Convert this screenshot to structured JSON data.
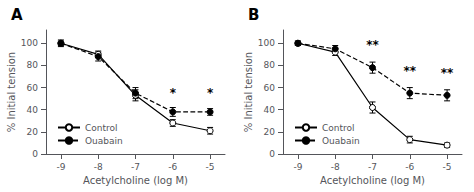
{
  "chart_data": [
    {
      "type": "line",
      "title": "A",
      "x": [
        -9,
        -8,
        -7,
        -6,
        -5
      ],
      "series": [
        {
          "name": "Control",
          "color": "#000000",
          "marker": "open_circle",
          "line_style": "solid",
          "values": [
            100,
            90,
            53,
            28,
            21
          ],
          "yerr": [
            2,
            3,
            5,
            3,
            3
          ]
        },
        {
          "name": "Ouabain",
          "color": "#000000",
          "marker": "filled_circle",
          "line_style": "dashed",
          "values": [
            100,
            88,
            55,
            38,
            38
          ],
          "yerr": [
            3,
            4,
            5,
            4,
            3
          ]
        }
      ],
      "annotations": [
        {
          "x": -6,
          "y": 50,
          "text": "*"
        },
        {
          "x": -5,
          "y": 50,
          "text": "*"
        }
      ],
      "xlabel": "Acetylcholine (log M)",
      "ylabel": "% Initial tension",
      "xlim": [
        -9.4,
        -4.6
      ],
      "xticks": [
        -9,
        -8,
        -7,
        -6,
        -5
      ],
      "ylim": [
        0,
        112
      ],
      "yticks": [
        0,
        20,
        40,
        60,
        80,
        100
      ],
      "grid": false,
      "legend": "lower left"
    },
    {
      "type": "line",
      "title": "B",
      "x": [
        -9,
        -8,
        -7,
        -6,
        -5
      ],
      "series": [
        {
          "name": "Control",
          "color": "#000000",
          "marker": "open_circle",
          "line_style": "solid",
          "values": [
            100,
            92,
            42,
            13,
            8
          ],
          "yerr": [
            2,
            3,
            5,
            3,
            2
          ]
        },
        {
          "name": "Ouabain",
          "color": "#000000",
          "marker": "filled_circle",
          "line_style": "dashed",
          "values": [
            100,
            95,
            78,
            55,
            53
          ],
          "yerr": [
            2,
            3,
            5,
            5,
            5
          ]
        }
      ],
      "annotations": [
        {
          "x": -7,
          "y": 93,
          "text": "**"
        },
        {
          "x": -6,
          "y": 70,
          "text": "**"
        },
        {
          "x": -5,
          "y": 68,
          "text": "**"
        }
      ],
      "xlabel": "Acetylcholine (log M)",
      "ylabel": "% Initial tension",
      "xlim": [
        -9.4,
        -4.6
      ],
      "xticks": [
        -9,
        -8,
        -7,
        -6,
        -5
      ],
      "ylim": [
        0,
        112
      ],
      "yticks": [
        0,
        20,
        40,
        60,
        80,
        100
      ],
      "grid": false,
      "legend": "lower left"
    }
  ]
}
